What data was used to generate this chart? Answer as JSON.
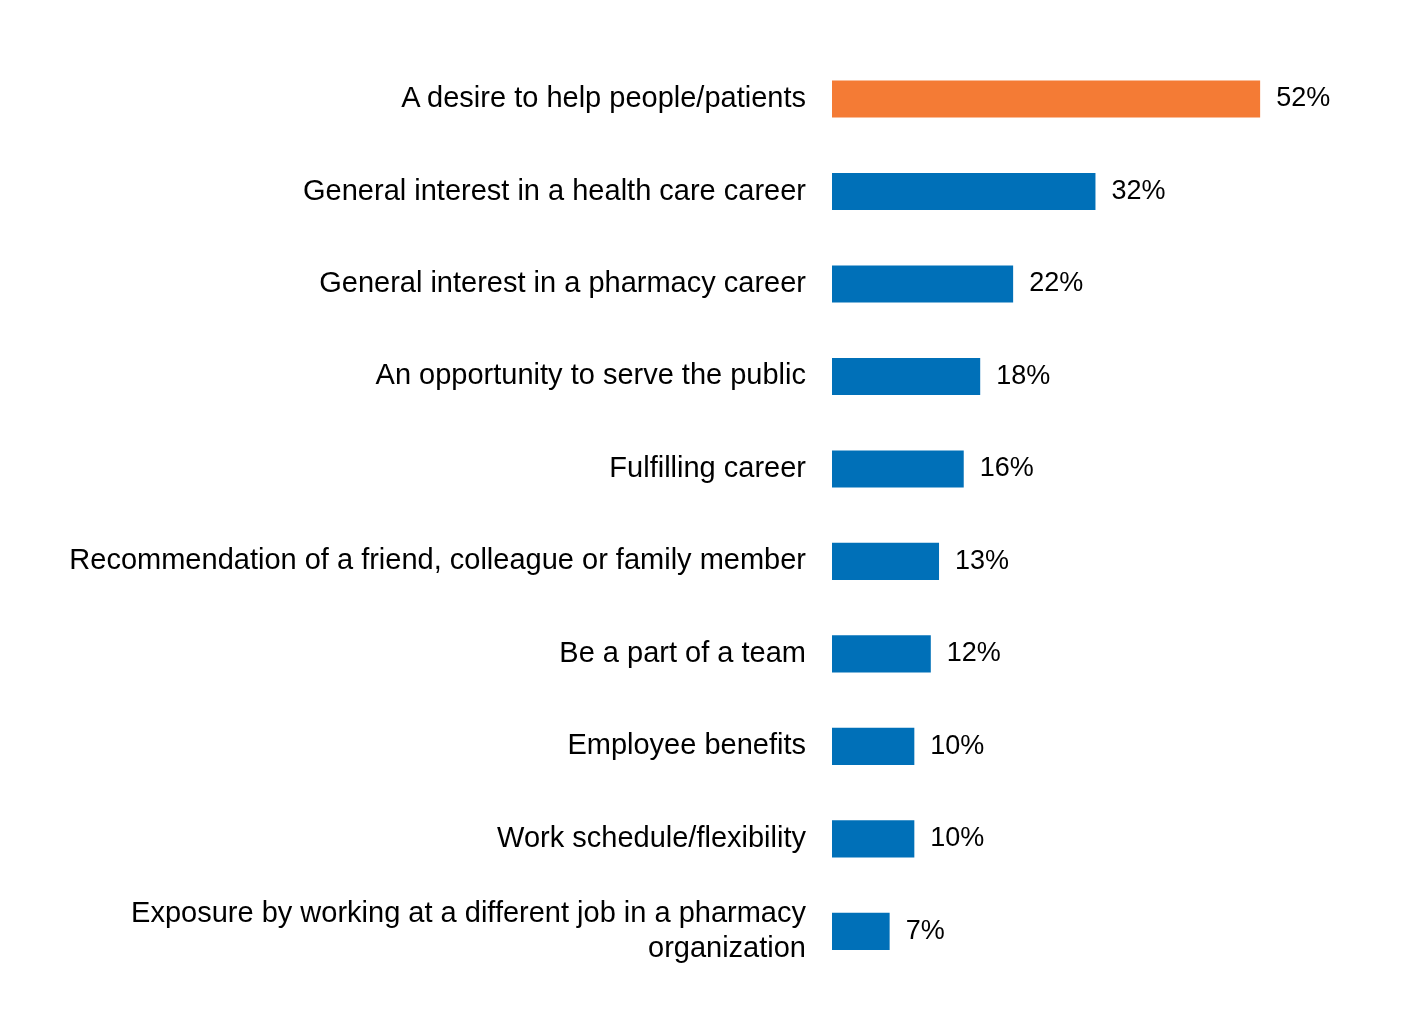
{
  "chart_data": {
    "type": "bar",
    "orientation": "horizontal",
    "categories": [
      "A desire to help people/patients",
      "General interest in a health care career",
      "General interest in a pharmacy career",
      "An opportunity to serve the public",
      "Fulfilling career",
      "Recommendation of a friend, colleague or family member",
      "Be a part of a team",
      "Employee benefits",
      "Work schedule/flexibility",
      "Exposure by working at a different job in a pharmacy organization"
    ],
    "values": [
      52,
      32,
      22,
      18,
      16,
      13,
      12,
      10,
      10,
      7
    ],
    "value_labels": [
      "52%",
      "32%",
      "22%",
      "18%",
      "16%",
      "13%",
      "12%",
      "10%",
      "10%",
      "7%"
    ],
    "colors": [
      "#f47b35",
      "#0070b8",
      "#0070b8",
      "#0070b8",
      "#0070b8",
      "#0070b8",
      "#0070b8",
      "#0070b8",
      "#0070b8",
      "#0070b8"
    ],
    "tick_labels": "y",
    "legend": false
  }
}
